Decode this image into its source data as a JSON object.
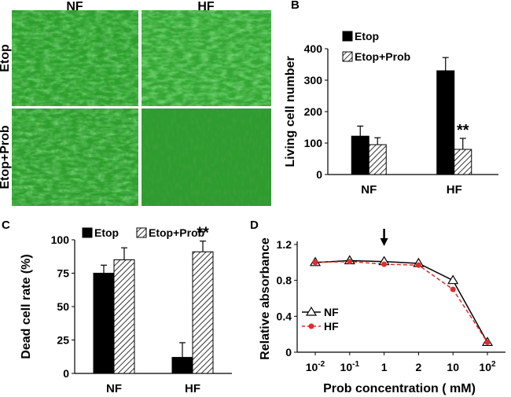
{
  "panels": {
    "a": {
      "label": "A"
    },
    "b": {
      "label": "B"
    },
    "c": {
      "label": "C"
    },
    "d": {
      "label": "D"
    }
  },
  "micrograph": {
    "columns": [
      "NF",
      "HF"
    ],
    "rows": [
      "Etop",
      "Etop+Prob"
    ],
    "colors": {
      "base": "#2aa02a",
      "light": "#8ee08e",
      "dark": "#126012"
    }
  },
  "colors": {
    "bar_solid": "#000000",
    "hatch": "#000000",
    "hf_line": "#e32b2b",
    "nf_line": "#000000"
  },
  "chart_data": [
    {
      "panel": "B",
      "type": "bar",
      "categories": [
        "NF",
        "HF"
      ],
      "ylabel": "Living cell number",
      "ylim": [
        0,
        400
      ],
      "yticks": [
        0,
        100,
        200,
        300,
        400
      ],
      "legend_position": "top-left",
      "series": [
        {
          "name": "Etop",
          "style": "solid",
          "values": [
            122,
            330
          ],
          "errors": [
            32,
            42
          ]
        },
        {
          "name": "Etop+Prob",
          "style": "hatched",
          "values": [
            95,
            80
          ],
          "errors": [
            22,
            35
          ]
        }
      ],
      "annotations": [
        {
          "text": "**",
          "category": "HF",
          "series": "Etop+Prob"
        }
      ]
    },
    {
      "panel": "C",
      "type": "bar",
      "categories": [
        "NF",
        "HF"
      ],
      "ylabel": "Dead cell rate (%)",
      "ylim": [
        0,
        100
      ],
      "yticks": [
        0,
        25,
        50,
        75,
        100
      ],
      "legend_position": "top",
      "series": [
        {
          "name": "Etop",
          "style": "solid",
          "values": [
            75,
            12
          ],
          "errors": [
            6,
            11
          ]
        },
        {
          "name": "Etop+Prob",
          "style": "hatched",
          "values": [
            85,
            91
          ],
          "errors": [
            9,
            8
          ]
        }
      ],
      "annotations": [
        {
          "text": "**",
          "category": "HF",
          "series": "Etop+Prob"
        }
      ]
    },
    {
      "panel": "D",
      "type": "line",
      "x_ticks": [
        {
          "base": "10",
          "exp": "-2"
        },
        {
          "base": "10",
          "exp": "-1"
        },
        {
          "base": "1",
          "exp": ""
        },
        {
          "base": "2",
          "exp": ""
        },
        {
          "base": "10",
          "exp": ""
        },
        {
          "base": "10",
          "exp": "2"
        }
      ],
      "xlabel": "Prob concentration ( mM)",
      "ylabel": "Relative absorbance",
      "ylim": [
        0,
        1.2
      ],
      "yticks": [
        "0",
        "0.4",
        "0.8",
        "1.2"
      ],
      "legend_position": "bottom-left",
      "arrow_at": "1",
      "series": [
        {
          "name": "NF",
          "marker": "open-triangle",
          "line": "solid",
          "values": [
            1.0,
            1.02,
            1.01,
            0.99,
            0.8,
            0.11
          ]
        },
        {
          "name": "HF",
          "marker": "filled-circle",
          "line": "dashed",
          "values": [
            1.0,
            1.01,
            0.98,
            0.97,
            0.7,
            0.11
          ]
        }
      ]
    }
  ]
}
